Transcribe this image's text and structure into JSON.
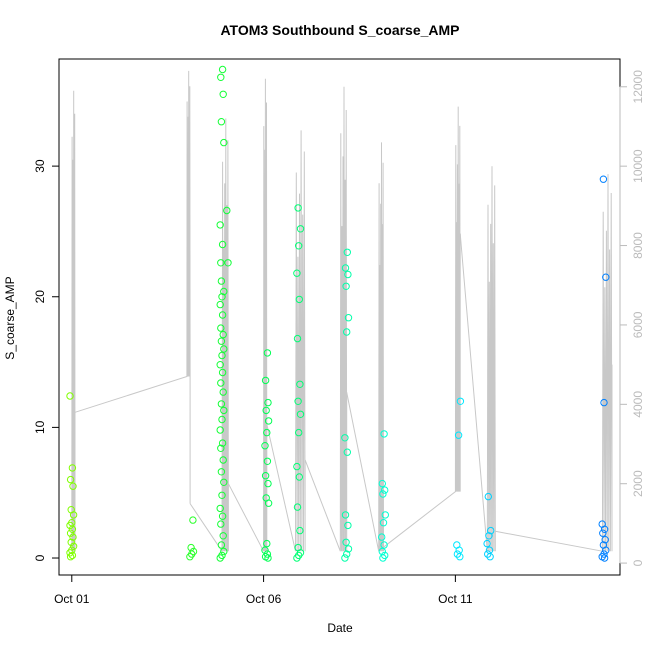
{
  "chart_data": {
    "type": "scatter",
    "title": "ATOM3 Southbound S_coarse_AMP",
    "xlabel": "Date",
    "ylabel": "S_coarse_AMP",
    "x_ticks": [
      {
        "date": "2019-10-01",
        "label": "Oct 01"
      },
      {
        "date": "2019-10-06",
        "label": "Oct 06"
      },
      {
        "date": "2019-10-11",
        "label": "Oct 11"
      }
    ],
    "xlim": [
      "2019-09-30T16:00",
      "2019-10-15T07:00"
    ],
    "y_left": {
      "range": [
        -1.3,
        38.2
      ],
      "ticks": [
        0,
        10,
        20,
        30
      ]
    },
    "y_right": {
      "range": [
        -300,
        12700
      ],
      "ticks": [
        0,
        2000,
        4000,
        6000,
        8000,
        10000,
        12000
      ],
      "color": "#bbbbbb"
    },
    "grid": false,
    "legend": "none",
    "point_series": {
      "marker": "open-circle",
      "color_by_time": [
        "#80ff00",
        "#00ff40",
        "#00ffff",
        "#0080ff"
      ],
      "points": [
        [
          "2019-10-01T00:00",
          12.4
        ],
        [
          "2019-10-01T00:00",
          6.9
        ],
        [
          "2019-10-01T00:00",
          6.0
        ],
        [
          "2019-10-01T00:00",
          5.5
        ],
        [
          "2019-10-01T00:00",
          3.7
        ],
        [
          "2019-10-01T00:00",
          3.3
        ],
        [
          "2019-10-01T00:00",
          2.7
        ],
        [
          "2019-10-01T00:00",
          2.5
        ],
        [
          "2019-10-01T00:00",
          2.2
        ],
        [
          "2019-10-01T00:00",
          1.9
        ],
        [
          "2019-10-01T00:00",
          1.6
        ],
        [
          "2019-10-01T00:00",
          1.2
        ],
        [
          "2019-10-01T00:00",
          0.9
        ],
        [
          "2019-10-01T00:00",
          0.6
        ],
        [
          "2019-10-01T00:00",
          0.4
        ],
        [
          "2019-10-01T00:00",
          0.2
        ],
        [
          "2019-10-01T00:00",
          0.1
        ],
        [
          "2019-10-04T03:00",
          2.9
        ],
        [
          "2019-10-04T03:00",
          0.8
        ],
        [
          "2019-10-04T03:00",
          0.5
        ],
        [
          "2019-10-04T03:00",
          0.3
        ],
        [
          "2019-10-04T03:00",
          0.1
        ],
        [
          "2019-10-04T22:00",
          37.4
        ],
        [
          "2019-10-04T22:00",
          36.8
        ],
        [
          "2019-10-04T22:00",
          35.5
        ],
        [
          "2019-10-04T22:00",
          33.4
        ],
        [
          "2019-10-04T22:00",
          31.8
        ],
        [
          "2019-10-05T01:00",
          26.6
        ],
        [
          "2019-10-04T22:00",
          25.5
        ],
        [
          "2019-10-04T22:00",
          24.0
        ],
        [
          "2019-10-04T22:00",
          22.6
        ],
        [
          "2019-10-05T01:00",
          22.6
        ],
        [
          "2019-10-04T22:00",
          21.2
        ],
        [
          "2019-10-04T22:00",
          20.4
        ],
        [
          "2019-10-04T22:00",
          20.0
        ],
        [
          "2019-10-04T22:00",
          19.4
        ],
        [
          "2019-10-04T22:00",
          18.6
        ],
        [
          "2019-10-04T22:00",
          17.6
        ],
        [
          "2019-10-04T22:00",
          17.1
        ],
        [
          "2019-10-04T22:00",
          16.6
        ],
        [
          "2019-10-04T22:00",
          16.0
        ],
        [
          "2019-10-04T22:00",
          15.5
        ],
        [
          "2019-10-04T22:00",
          14.8
        ],
        [
          "2019-10-04T22:00",
          14.2
        ],
        [
          "2019-10-04T22:00",
          13.4
        ],
        [
          "2019-10-04T22:00",
          12.7
        ],
        [
          "2019-10-04T22:00",
          11.8
        ],
        [
          "2019-10-04T22:00",
          11.3
        ],
        [
          "2019-10-04T22:00",
          10.6
        ],
        [
          "2019-10-04T22:00",
          9.8
        ],
        [
          "2019-10-04T22:00",
          8.8
        ],
        [
          "2019-10-04T22:00",
          8.4
        ],
        [
          "2019-10-04T22:00",
          7.5
        ],
        [
          "2019-10-04T22:00",
          6.6
        ],
        [
          "2019-10-04T22:00",
          5.8
        ],
        [
          "2019-10-04T22:00",
          4.8
        ],
        [
          "2019-10-04T22:00",
          3.8
        ],
        [
          "2019-10-04T22:00",
          3.2
        ],
        [
          "2019-10-04T22:00",
          2.6
        ],
        [
          "2019-10-04T22:00",
          1.7
        ],
        [
          "2019-10-04T22:00",
          1.0
        ],
        [
          "2019-10-04T22:00",
          0.5
        ],
        [
          "2019-10-04T22:00",
          0.2
        ],
        [
          "2019-10-04T22:00",
          0.0
        ],
        [
          "2019-10-06T02:00",
          15.7
        ],
        [
          "2019-10-06T02:00",
          13.6
        ],
        [
          "2019-10-06T02:00",
          11.9
        ],
        [
          "2019-10-06T02:00",
          11.3
        ],
        [
          "2019-10-06T02:00",
          10.5
        ],
        [
          "2019-10-06T02:00",
          9.6
        ],
        [
          "2019-10-06T02:00",
          8.6
        ],
        [
          "2019-10-06T02:00",
          7.4
        ],
        [
          "2019-10-06T02:00",
          6.3
        ],
        [
          "2019-10-06T02:00",
          5.7
        ],
        [
          "2019-10-06T02:00",
          4.6
        ],
        [
          "2019-10-06T02:00",
          4.2
        ],
        [
          "2019-10-06T02:00",
          1.1
        ],
        [
          "2019-10-06T02:00",
          0.6
        ],
        [
          "2019-10-06T02:00",
          0.3
        ],
        [
          "2019-10-06T02:00",
          0.1
        ],
        [
          "2019-10-06T02:00",
          0.0
        ],
        [
          "2019-10-06T22:00",
          26.8
        ],
        [
          "2019-10-06T22:00",
          25.2
        ],
        [
          "2019-10-06T22:00",
          23.9
        ],
        [
          "2019-10-06T22:00",
          21.8
        ],
        [
          "2019-10-06T22:00",
          19.8
        ],
        [
          "2019-10-06T22:00",
          16.8
        ],
        [
          "2019-10-06T22:00",
          13.3
        ],
        [
          "2019-10-06T22:00",
          12.0
        ],
        [
          "2019-10-06T22:00",
          11.0
        ],
        [
          "2019-10-06T22:00",
          9.6
        ],
        [
          "2019-10-06T22:00",
          7.0
        ],
        [
          "2019-10-06T22:00",
          6.2
        ],
        [
          "2019-10-06T22:00",
          3.9
        ],
        [
          "2019-10-06T22:00",
          2.1
        ],
        [
          "2019-10-06T22:00",
          0.8
        ],
        [
          "2019-10-06T22:00",
          0.4
        ],
        [
          "2019-10-06T22:00",
          0.2
        ],
        [
          "2019-10-06T22:00",
          0.0
        ],
        [
          "2019-10-08T04:00",
          23.4
        ],
        [
          "2019-10-08T04:00",
          22.2
        ],
        [
          "2019-10-08T04:00",
          21.7
        ],
        [
          "2019-10-08T04:00",
          20.8
        ],
        [
          "2019-10-08T04:00",
          18.4
        ],
        [
          "2019-10-08T04:00",
          17.3
        ],
        [
          "2019-10-08T04:00",
          9.2
        ],
        [
          "2019-10-08T04:00",
          8.1
        ],
        [
          "2019-10-08T04:00",
          3.3
        ],
        [
          "2019-10-08T04:00",
          2.5
        ],
        [
          "2019-10-08T04:00",
          1.2
        ],
        [
          "2019-10-08T04:00",
          0.7
        ],
        [
          "2019-10-08T04:00",
          0.3
        ],
        [
          "2019-10-08T04:00",
          0.0
        ],
        [
          "2019-10-09T03:00",
          9.5
        ],
        [
          "2019-10-09T03:00",
          5.7
        ],
        [
          "2019-10-09T03:00",
          5.2
        ],
        [
          "2019-10-09T03:00",
          4.9
        ],
        [
          "2019-10-09T03:00",
          3.3
        ],
        [
          "2019-10-09T03:00",
          2.7
        ],
        [
          "2019-10-09T03:00",
          1.6
        ],
        [
          "2019-10-09T03:00",
          1.0
        ],
        [
          "2019-10-09T03:00",
          0.5
        ],
        [
          "2019-10-09T03:00",
          0.2
        ],
        [
          "2019-10-09T03:00",
          0.0
        ],
        [
          "2019-10-11T02:00",
          12.0
        ],
        [
          "2019-10-11T02:00",
          9.4
        ],
        [
          "2019-10-11T02:00",
          1.0
        ],
        [
          "2019-10-11T02:00",
          0.6
        ],
        [
          "2019-10-11T02:00",
          0.3
        ],
        [
          "2019-10-11T02:00",
          0.1
        ],
        [
          "2019-10-11T21:00",
          4.7
        ],
        [
          "2019-10-11T21:00",
          2.1
        ],
        [
          "2019-10-11T21:00",
          1.7
        ],
        [
          "2019-10-11T21:00",
          1.1
        ],
        [
          "2019-10-11T21:00",
          0.6
        ],
        [
          "2019-10-11T21:00",
          0.3
        ],
        [
          "2019-10-11T21:00",
          0.1
        ],
        [
          "2019-10-14T21:00",
          29.0
        ],
        [
          "2019-10-14T21:00",
          21.5
        ],
        [
          "2019-10-14T21:00",
          11.9
        ],
        [
          "2019-10-14T21:00",
          2.6
        ],
        [
          "2019-10-14T21:00",
          2.2
        ],
        [
          "2019-10-14T21:00",
          1.9
        ],
        [
          "2019-10-14T21:00",
          1.4
        ],
        [
          "2019-10-14T21:00",
          1.0
        ],
        [
          "2019-10-14T21:00",
          0.6
        ],
        [
          "2019-10-14T21:00",
          0.3
        ],
        [
          "2019-10-14T21:00",
          0.1
        ],
        [
          "2019-10-14T21:00",
          0.0
        ]
      ]
    },
    "line_series": {
      "axis": "right",
      "color": "#c8c8c8",
      "bursts": [
        {
          "start": "2019-10-01T00:00",
          "end": "2019-10-01T02:00",
          "min": 300,
          "max": 11900,
          "end_value": 3800
        },
        {
          "start": "2019-10-04T00:00",
          "end": "2019-10-04T02:00",
          "min": 4700,
          "max": 12400,
          "end_value": 1500
        },
        {
          "start": "2019-10-04T22:00",
          "end": "2019-10-05T02:00",
          "min": 300,
          "max": 11200,
          "end_value": 2000
        },
        {
          "start": "2019-10-06T00:00",
          "end": "2019-10-06T02:00",
          "min": 300,
          "max": 12200,
          "end_value": 3500
        },
        {
          "start": "2019-10-06T20:00",
          "end": "2019-10-07T02:00",
          "min": 300,
          "max": 10900,
          "end_value": 2600
        },
        {
          "start": "2019-10-08T00:00",
          "end": "2019-10-08T04:00",
          "min": 300,
          "max": 12000,
          "end_value": 4300
        },
        {
          "start": "2019-10-09T00:00",
          "end": "2019-10-09T03:00",
          "min": 300,
          "max": 10600,
          "end_value": 400
        },
        {
          "start": "2019-10-11T00:00",
          "end": "2019-10-11T03:00",
          "min": 1800,
          "max": 11500,
          "end_value": 8300
        },
        {
          "start": "2019-10-11T20:00",
          "end": "2019-10-12T01:00",
          "min": 300,
          "max": 10000,
          "end_value": 800
        },
        {
          "start": "2019-10-14T20:00",
          "end": "2019-10-15T02:00",
          "min": 300,
          "max": 9800,
          "end_value": 5000
        }
      ]
    }
  }
}
